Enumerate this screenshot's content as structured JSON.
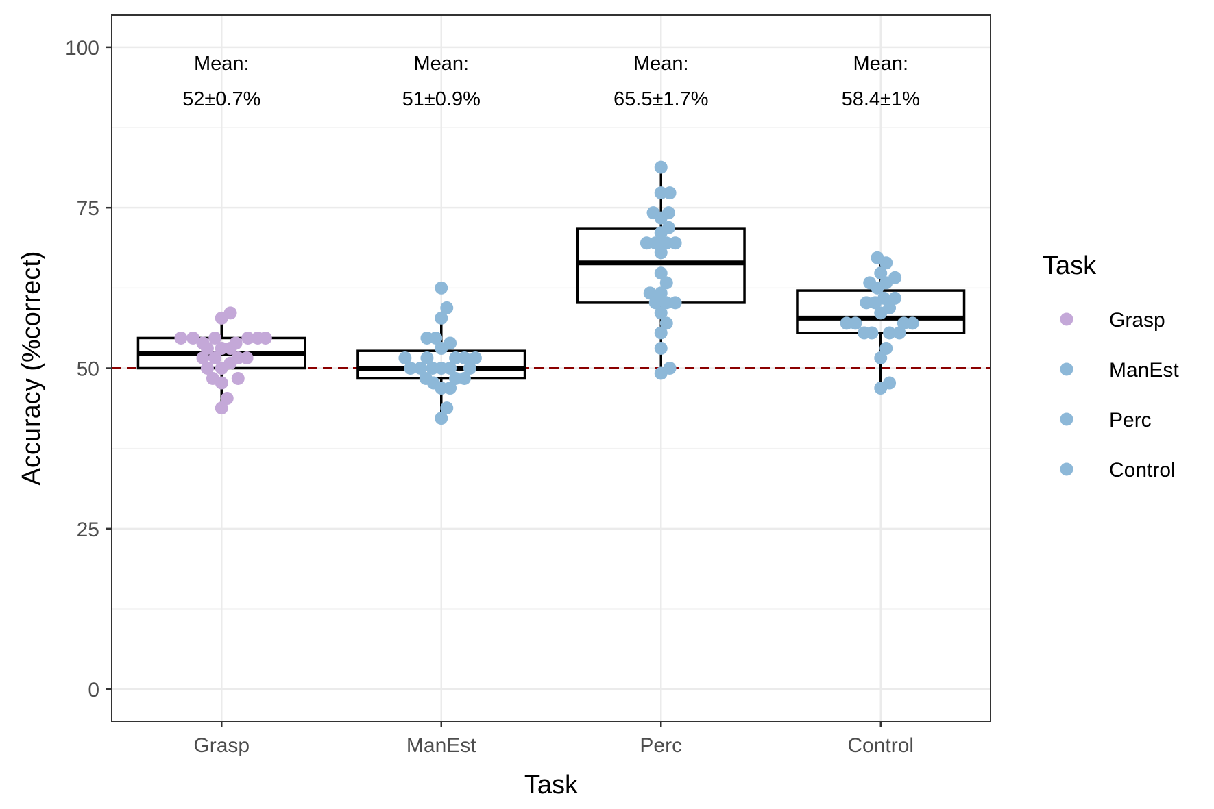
{
  "chart_data": {
    "type": "box+dotplot",
    "xlabel": "Task",
    "ylabel": "Accuracy (%correct)",
    "ylim": [
      -5,
      105
    ],
    "yticks": [
      0,
      25,
      50,
      75,
      100
    ],
    "categories": [
      "Grasp",
      "ManEst",
      "Perc",
      "Control"
    ],
    "grid": true,
    "reference_line": {
      "y": 50,
      "style": "dashed",
      "color": "#8b0000"
    },
    "annotations": [
      {
        "category": "Grasp",
        "line1": "Mean:",
        "line2": "52±0.7%"
      },
      {
        "category": "ManEst",
        "line1": "Mean:",
        "line2": "51±0.9%"
      },
      {
        "category": "Perc",
        "line1": "Mean:",
        "line2": "65.5±1.7%"
      },
      {
        "category": "Control",
        "line1": "Mean:",
        "line2": "58.4±1%"
      }
    ],
    "boxes": [
      {
        "category": "Grasp",
        "q1": 50.0,
        "median": 52.3,
        "q3": 54.7,
        "whisker_low": 43.8,
        "whisker_high": 58.0
      },
      {
        "category": "ManEst",
        "q1": 48.4,
        "median": 50.0,
        "q3": 52.7,
        "whisker_low": 42.2,
        "whisker_high": 57.8
      },
      {
        "category": "Perc",
        "q1": 60.2,
        "median": 66.4,
        "q3": 71.7,
        "whisker_low": 49.2,
        "whisker_high": 81.3
      },
      {
        "category": "Control",
        "q1": 55.5,
        "median": 57.8,
        "q3": 62.1,
        "whisker_low": 46.9,
        "whisker_high": 67.2
      }
    ],
    "series": [
      {
        "name": "Grasp",
        "color": "#c4a8d8",
        "points": [
          {
            "dx": -0.37,
            "y": 54.7
          },
          {
            "dx": -0.26,
            "y": 54.7
          },
          {
            "dx": -0.17,
            "y": 53.9
          },
          {
            "dx": -0.06,
            "y": 54.7
          },
          {
            "dx": 0.13,
            "y": 53.9
          },
          {
            "dx": 0.24,
            "y": 54.7
          },
          {
            "dx": 0.33,
            "y": 54.7
          },
          {
            "dx": 0.4,
            "y": 54.7
          },
          {
            "dx": 0.0,
            "y": 57.8
          },
          {
            "dx": 0.08,
            "y": 58.6
          },
          {
            "dx": -0.13,
            "y": 53.1
          },
          {
            "dx": 0.0,
            "y": 53.1
          },
          {
            "dx": 0.08,
            "y": 53.1
          },
          {
            "dx": -0.17,
            "y": 51.6
          },
          {
            "dx": -0.06,
            "y": 51.6
          },
          {
            "dx": 0.15,
            "y": 51.6
          },
          {
            "dx": 0.23,
            "y": 51.6
          },
          {
            "dx": -0.13,
            "y": 50.0
          },
          {
            "dx": 0.0,
            "y": 50.0
          },
          {
            "dx": 0.08,
            "y": 50.8
          },
          {
            "dx": -0.08,
            "y": 48.4
          },
          {
            "dx": 0.0,
            "y": 47.7
          },
          {
            "dx": 0.15,
            "y": 48.4
          },
          {
            "dx": 0.05,
            "y": 45.3
          },
          {
            "dx": 0.0,
            "y": 43.8
          }
        ]
      },
      {
        "name": "ManEst",
        "color": "#8db8d8",
        "points": [
          {
            "dx": 0.0,
            "y": 62.5
          },
          {
            "dx": 0.05,
            "y": 59.4
          },
          {
            "dx": 0.0,
            "y": 57.8
          },
          {
            "dx": -0.13,
            "y": 54.7
          },
          {
            "dx": -0.05,
            "y": 54.7
          },
          {
            "dx": 0.08,
            "y": 53.9
          },
          {
            "dx": 0.0,
            "y": 53.1
          },
          {
            "dx": -0.33,
            "y": 51.6
          },
          {
            "dx": -0.13,
            "y": 51.6
          },
          {
            "dx": 0.13,
            "y": 51.6
          },
          {
            "dx": 0.21,
            "y": 51.6
          },
          {
            "dx": 0.31,
            "y": 51.6
          },
          {
            "dx": -0.28,
            "y": 50.0
          },
          {
            "dx": -0.19,
            "y": 50.0
          },
          {
            "dx": -0.08,
            "y": 50.0
          },
          {
            "dx": 0.0,
            "y": 50.0
          },
          {
            "dx": 0.08,
            "y": 50.0
          },
          {
            "dx": 0.26,
            "y": 50.0
          },
          {
            "dx": -0.14,
            "y": 48.4
          },
          {
            "dx": 0.13,
            "y": 48.4
          },
          {
            "dx": 0.21,
            "y": 48.4
          },
          {
            "dx": -0.07,
            "y": 47.7
          },
          {
            "dx": 0.0,
            "y": 46.9
          },
          {
            "dx": 0.08,
            "y": 46.9
          },
          {
            "dx": 0.05,
            "y": 43.8
          },
          {
            "dx": 0.0,
            "y": 42.2
          }
        ]
      },
      {
        "name": "Perc",
        "color": "#8db8d8",
        "points": [
          {
            "dx": 0.0,
            "y": 81.3
          },
          {
            "dx": 0.0,
            "y": 77.3
          },
          {
            "dx": 0.08,
            "y": 77.3
          },
          {
            "dx": -0.07,
            "y": 74.2
          },
          {
            "dx": 0.07,
            "y": 74.2
          },
          {
            "dx": 0.0,
            "y": 73.4
          },
          {
            "dx": 0.07,
            "y": 71.9
          },
          {
            "dx": 0.0,
            "y": 71.1
          },
          {
            "dx": -0.13,
            "y": 69.5
          },
          {
            "dx": -0.05,
            "y": 69.5
          },
          {
            "dx": 0.05,
            "y": 69.5
          },
          {
            "dx": 0.13,
            "y": 69.5
          },
          {
            "dx": 0.0,
            "y": 68.0
          },
          {
            "dx": 0.0,
            "y": 64.8
          },
          {
            "dx": 0.05,
            "y": 63.3
          },
          {
            "dx": -0.1,
            "y": 61.7
          },
          {
            "dx": 0.0,
            "y": 61.7
          },
          {
            "dx": -0.05,
            "y": 60.2
          },
          {
            "dx": 0.05,
            "y": 60.2
          },
          {
            "dx": 0.13,
            "y": 60.2
          },
          {
            "dx": 0.0,
            "y": 58.6
          },
          {
            "dx": 0.05,
            "y": 57.0
          },
          {
            "dx": 0.0,
            "y": 55.5
          },
          {
            "dx": 0.0,
            "y": 53.1
          },
          {
            "dx": 0.0,
            "y": 49.2
          },
          {
            "dx": 0.08,
            "y": 50.0
          }
        ]
      },
      {
        "name": "Control",
        "color": "#8db8d8",
        "points": [
          {
            "dx": -0.03,
            "y": 67.2
          },
          {
            "dx": 0.05,
            "y": 66.4
          },
          {
            "dx": 0.0,
            "y": 64.8
          },
          {
            "dx": -0.1,
            "y": 63.3
          },
          {
            "dx": 0.05,
            "y": 63.3
          },
          {
            "dx": 0.13,
            "y": 64.1
          },
          {
            "dx": -0.03,
            "y": 62.5
          },
          {
            "dx": -0.13,
            "y": 60.2
          },
          {
            "dx": -0.05,
            "y": 60.2
          },
          {
            "dx": 0.03,
            "y": 60.9
          },
          {
            "dx": 0.13,
            "y": 60.9
          },
          {
            "dx": 0.08,
            "y": 59.4
          },
          {
            "dx": 0.0,
            "y": 58.6
          },
          {
            "dx": -0.31,
            "y": 57.0
          },
          {
            "dx": -0.23,
            "y": 57.0
          },
          {
            "dx": 0.21,
            "y": 57.0
          },
          {
            "dx": 0.29,
            "y": 57.0
          },
          {
            "dx": -0.15,
            "y": 55.5
          },
          {
            "dx": -0.08,
            "y": 55.5
          },
          {
            "dx": 0.08,
            "y": 55.5
          },
          {
            "dx": 0.17,
            "y": 55.5
          },
          {
            "dx": 0.05,
            "y": 53.1
          },
          {
            "dx": 0.0,
            "y": 51.6
          },
          {
            "dx": 0.08,
            "y": 47.7
          },
          {
            "dx": 0.0,
            "y": 46.9
          }
        ]
      }
    ],
    "legend": {
      "title": "Task",
      "position": "right",
      "items": [
        {
          "label": "Grasp",
          "color": "#c4a8d8"
        },
        {
          "label": "ManEst",
          "color": "#8db8d8"
        },
        {
          "label": "Perc",
          "color": "#8db8d8"
        },
        {
          "label": "Control",
          "color": "#8db8d8"
        }
      ]
    }
  }
}
